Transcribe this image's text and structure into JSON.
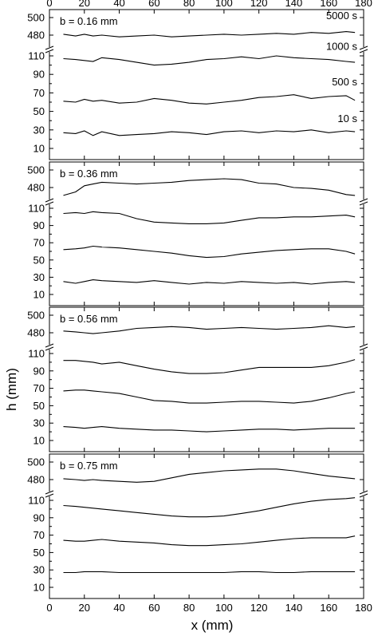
{
  "chart_data": {
    "type": "line",
    "xlabel": "x (mm)",
    "ylabel": "h (mm)",
    "xlim": [
      0,
      180
    ],
    "x_ticks": [
      0,
      20,
      40,
      60,
      80,
      100,
      120,
      140,
      160,
      180
    ],
    "y_ticks_lower": [
      10,
      30,
      50,
      70,
      90,
      110
    ],
    "y_ticks_upper": [
      480,
      500
    ],
    "broken_y_axis": true,
    "panels": [
      {
        "label": "b = 0.16 mm",
        "series": [
          {
            "name": "10 s",
            "x": [
              8,
              15,
              20,
              25,
              30,
              40,
              50,
              60,
              70,
              80,
              90,
              100,
              110,
              120,
              130,
              140,
              150,
              160,
              170,
              175
            ],
            "y": [
              27,
              26,
              29,
              24,
              28,
              24,
              25,
              26,
              28,
              27,
              25,
              28,
              29,
              27,
              29,
              28,
              30,
              27,
              29,
              28
            ]
          },
          {
            "name": "500 s",
            "x": [
              8,
              15,
              20,
              25,
              30,
              40,
              50,
              60,
              70,
              80,
              90,
              100,
              110,
              120,
              130,
              140,
              150,
              160,
              170,
              175
            ],
            "y": [
              61,
              60,
              63,
              61,
              62,
              59,
              60,
              64,
              62,
              59,
              58,
              60,
              62,
              65,
              66,
              68,
              64,
              66,
              67,
              62
            ]
          },
          {
            "name": "1000 s",
            "x": [
              8,
              15,
              20,
              25,
              30,
              40,
              50,
              60,
              70,
              80,
              90,
              100,
              110,
              120,
              130,
              140,
              150,
              160,
              170,
              175
            ],
            "y": [
              107,
              106,
              105,
              104,
              108,
              106,
              103,
              100,
              101,
              103,
              106,
              107,
              109,
              107,
              110,
              108,
              107,
              106,
              104,
              103
            ]
          },
          {
            "name": "5000 s",
            "x": [
              8,
              15,
              20,
              25,
              30,
              40,
              50,
              60,
              70,
              80,
              90,
              100,
              110,
              120,
              130,
              140,
              150,
              160,
              170,
              175
            ],
            "y": [
              481,
              479,
              481,
              479,
              480,
              478,
              479,
              480,
              478,
              479,
              480,
              481,
              480,
              481,
              482,
              481,
              483,
              482,
              484,
              483
            ]
          }
        ],
        "labels": [
          "5000 s",
          "1000 s",
          "500 s",
          "10 s"
        ]
      },
      {
        "label": "b = 0.36 mm",
        "series": [
          {
            "name": "10 s",
            "x": [
              8,
              15,
              20,
              25,
              30,
              40,
              50,
              60,
              70,
              80,
              90,
              100,
              110,
              120,
              130,
              140,
              150,
              160,
              170,
              175
            ],
            "y": [
              25,
              23,
              25,
              27,
              26,
              25,
              24,
              26,
              24,
              22,
              24,
              23,
              25,
              24,
              23,
              24,
              22,
              24,
              25,
              24
            ]
          },
          {
            "name": "500 s",
            "x": [
              8,
              15,
              20,
              25,
              30,
              40,
              50,
              60,
              70,
              80,
              90,
              100,
              110,
              120,
              130,
              140,
              150,
              160,
              170,
              175
            ],
            "y": [
              62,
              63,
              64,
              66,
              65,
              64,
              62,
              60,
              58,
              55,
              53,
              54,
              57,
              59,
              61,
              62,
              63,
              63,
              60,
              57
            ]
          },
          {
            "name": "1000 s",
            "x": [
              8,
              15,
              20,
              25,
              30,
              40,
              50,
              60,
              70,
              80,
              90,
              100,
              110,
              120,
              130,
              140,
              150,
              160,
              170,
              175
            ],
            "y": [
              104,
              105,
              104,
              106,
              105,
              104,
              98,
              94,
              93,
              92,
              92,
              93,
              96,
              99,
              99,
              100,
              100,
              101,
              102,
              100
            ]
          },
          {
            "name": "5000 s",
            "x": [
              8,
              15,
              20,
              25,
              30,
              40,
              50,
              60,
              70,
              80,
              90,
              100,
              110,
              120,
              130,
              140,
              150,
              160,
              170,
              175
            ],
            "y": [
              471,
              475,
              482,
              484,
              486,
              485,
              484,
              485,
              486,
              488,
              489,
              490,
              489,
              485,
              484,
              480,
              479,
              477,
              472,
              471
            ]
          }
        ]
      },
      {
        "label": "b = 0.56 mm",
        "series": [
          {
            "name": "10 s",
            "x": [
              8,
              15,
              20,
              25,
              30,
              40,
              50,
              60,
              70,
              80,
              90,
              100,
              110,
              120,
              130,
              140,
              150,
              160,
              170,
              175
            ],
            "y": [
              26,
              25,
              24,
              25,
              26,
              24,
              23,
              22,
              22,
              21,
              20,
              21,
              22,
              23,
              23,
              22,
              23,
              24,
              24,
              24
            ]
          },
          {
            "name": "500 s",
            "x": [
              8,
              15,
              20,
              25,
              30,
              40,
              50,
              60,
              70,
              80,
              90,
              100,
              110,
              120,
              130,
              140,
              150,
              160,
              170,
              175
            ],
            "y": [
              67,
              68,
              68,
              67,
              66,
              64,
              60,
              56,
              55,
              53,
              53,
              54,
              55,
              55,
              54,
              53,
              55,
              59,
              64,
              66
            ]
          },
          {
            "name": "1000 s",
            "x": [
              8,
              15,
              20,
              25,
              30,
              40,
              50,
              60,
              70,
              80,
              90,
              100,
              110,
              120,
              130,
              140,
              150,
              160,
              170,
              175
            ],
            "y": [
              102,
              102,
              101,
              100,
              98,
              100,
              96,
              92,
              89,
              87,
              87,
              88,
              91,
              94,
              94,
              94,
              94,
              96,
              100,
              103
            ]
          },
          {
            "name": "5000 s",
            "x": [
              8,
              15,
              20,
              25,
              30,
              40,
              50,
              60,
              70,
              80,
              90,
              100,
              110,
              120,
              130,
              140,
              150,
              160,
              170,
              175
            ],
            "y": [
              482,
              481,
              480,
              479,
              480,
              482,
              485,
              486,
              487,
              486,
              484,
              485,
              486,
              485,
              484,
              485,
              486,
              488,
              486,
              487
            ]
          }
        ]
      },
      {
        "label": "b = 0.75 mm",
        "series": [
          {
            "name": "10 s",
            "x": [
              8,
              15,
              20,
              25,
              30,
              40,
              50,
              60,
              70,
              80,
              90,
              100,
              110,
              120,
              130,
              140,
              150,
              160,
              170,
              175
            ],
            "y": [
              27,
              27,
              28,
              28,
              28,
              27,
              27,
              27,
              27,
              27,
              27,
              27,
              28,
              28,
              27,
              27,
              28,
              28,
              28,
              28
            ]
          },
          {
            "name": "500 s",
            "x": [
              8,
              15,
              20,
              25,
              30,
              40,
              50,
              60,
              70,
              80,
              90,
              100,
              110,
              120,
              130,
              140,
              150,
              160,
              170,
              175
            ],
            "y": [
              64,
              63,
              63,
              64,
              65,
              63,
              62,
              61,
              59,
              58,
              58,
              59,
              60,
              62,
              64,
              66,
              67,
              67,
              67,
              69
            ]
          },
          {
            "name": "1000 s",
            "x": [
              8,
              15,
              20,
              25,
              30,
              40,
              50,
              60,
              70,
              80,
              90,
              100,
              110,
              120,
              130,
              140,
              150,
              160,
              170,
              175
            ],
            "y": [
              104,
              103,
              102,
              101,
              100,
              98,
              96,
              94,
              92,
              91,
              91,
              92,
              95,
              98,
              102,
              106,
              109,
              111,
              112,
              113
            ]
          },
          {
            "name": "5000 s",
            "x": [
              8,
              15,
              20,
              25,
              30,
              40,
              50,
              60,
              70,
              80,
              90,
              100,
              110,
              120,
              130,
              140,
              150,
              160,
              170,
              175
            ],
            "y": [
              481,
              480,
              479,
              480,
              479,
              478,
              477,
              478,
              482,
              486,
              488,
              490,
              491,
              492,
              492,
              490,
              487,
              484,
              482,
              481
            ]
          }
        ]
      }
    ]
  }
}
